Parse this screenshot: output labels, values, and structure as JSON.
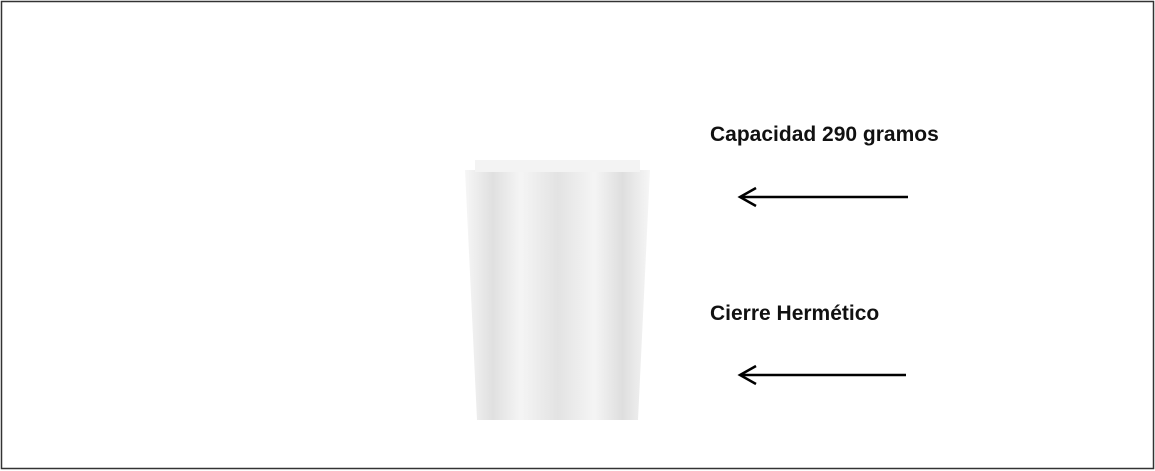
{
  "labels": [
    "Capacidad 290 gramos",
    "Cierre Hermético"
  ]
}
